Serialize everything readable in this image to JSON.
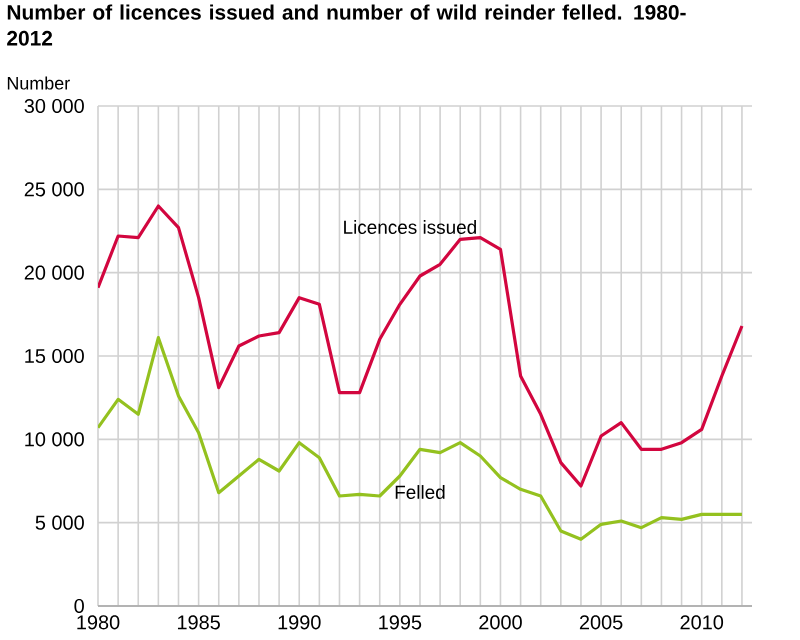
{
  "chart_data": {
    "type": "line",
    "title": "Number of licences issued and number of wild reinder felled. 1980-2012",
    "ylabel": "Number",
    "x": [
      1980,
      1981,
      1982,
      1983,
      1984,
      1985,
      1986,
      1987,
      1988,
      1989,
      1990,
      1991,
      1992,
      1993,
      1994,
      1995,
      1996,
      1997,
      1998,
      1999,
      2000,
      2001,
      2002,
      2003,
      2004,
      2005,
      2006,
      2007,
      2008,
      2009,
      2010,
      2011,
      2012
    ],
    "series": [
      {
        "name": "Licences issued",
        "color": "#d2063f",
        "values": [
          19100,
          22200,
          22100,
          24000,
          22700,
          18500,
          13100,
          15600,
          16200,
          16400,
          18500,
          18100,
          12800,
          12800,
          16000,
          18100,
          19800,
          20500,
          22000,
          22100,
          21400,
          13800,
          11500,
          8600,
          7200,
          10200,
          11000,
          9400,
          9400,
          9800,
          10600,
          13800,
          16800
        ]
      },
      {
        "name": "Felled",
        "color": "#94c11f",
        "values": [
          10700,
          12400,
          11500,
          16100,
          12600,
          10400,
          6800,
          7800,
          8800,
          8100,
          9800,
          8900,
          6600,
          6700,
          6600,
          7800,
          9400,
          9200,
          9800,
          9000,
          7700,
          7000,
          6600,
          4500,
          4000,
          4900,
          5100,
          4700,
          5300,
          5200,
          5500,
          5500,
          5500
        ]
      }
    ],
    "xlim": [
      1980,
      2012.5
    ],
    "ylim": [
      0,
      30000
    ],
    "xticks": [
      1980,
      {
        "value": 1981,
        "label": null
      },
      {
        "value": 1982,
        "label": null
      },
      {
        "value": 1983,
        "label": null
      },
      {
        "value": 1984,
        "label": null
      },
      1985,
      {
        "value": 1986,
        "label": null
      },
      {
        "value": 1987,
        "label": null
      },
      {
        "value": 1988,
        "label": null
      },
      {
        "value": 1989,
        "label": null
      },
      1990,
      {
        "value": 1991,
        "label": null
      },
      {
        "value": 1992,
        "label": null
      },
      {
        "value": 1993,
        "label": null
      },
      {
        "value": 1994,
        "label": null
      },
      1995,
      {
        "value": 1996,
        "label": null
      },
      {
        "value": 1997,
        "label": null
      },
      {
        "value": 1998,
        "label": null
      },
      {
        "value": 1999,
        "label": null
      },
      2000,
      {
        "value": 2001,
        "label": null
      },
      {
        "value": 2002,
        "label": null
      },
      {
        "value": 2003,
        "label": null
      },
      {
        "value": 2004,
        "label": null
      },
      2005,
      {
        "value": 2006,
        "label": null
      },
      {
        "value": 2007,
        "label": null
      },
      {
        "value": 2008,
        "label": null
      },
      {
        "value": 2009,
        "label": null
      },
      2010,
      {
        "value": 2011,
        "label": null
      },
      {
        "value": 2012,
        "label": null
      }
    ],
    "yticks": [
      0,
      {
        "value": 5000,
        "label": "5 000"
      },
      {
        "value": 10000,
        "label": "10 000"
      },
      {
        "value": 15000,
        "label": "15 000"
      },
      {
        "value": 20000,
        "label": "20 000"
      },
      {
        "value": 25000,
        "label": "25 000"
      },
      {
        "value": 30000,
        "label": "30 000"
      }
    ],
    "grid": true,
    "legend": false,
    "marker": "none",
    "line_style": "solid"
  }
}
